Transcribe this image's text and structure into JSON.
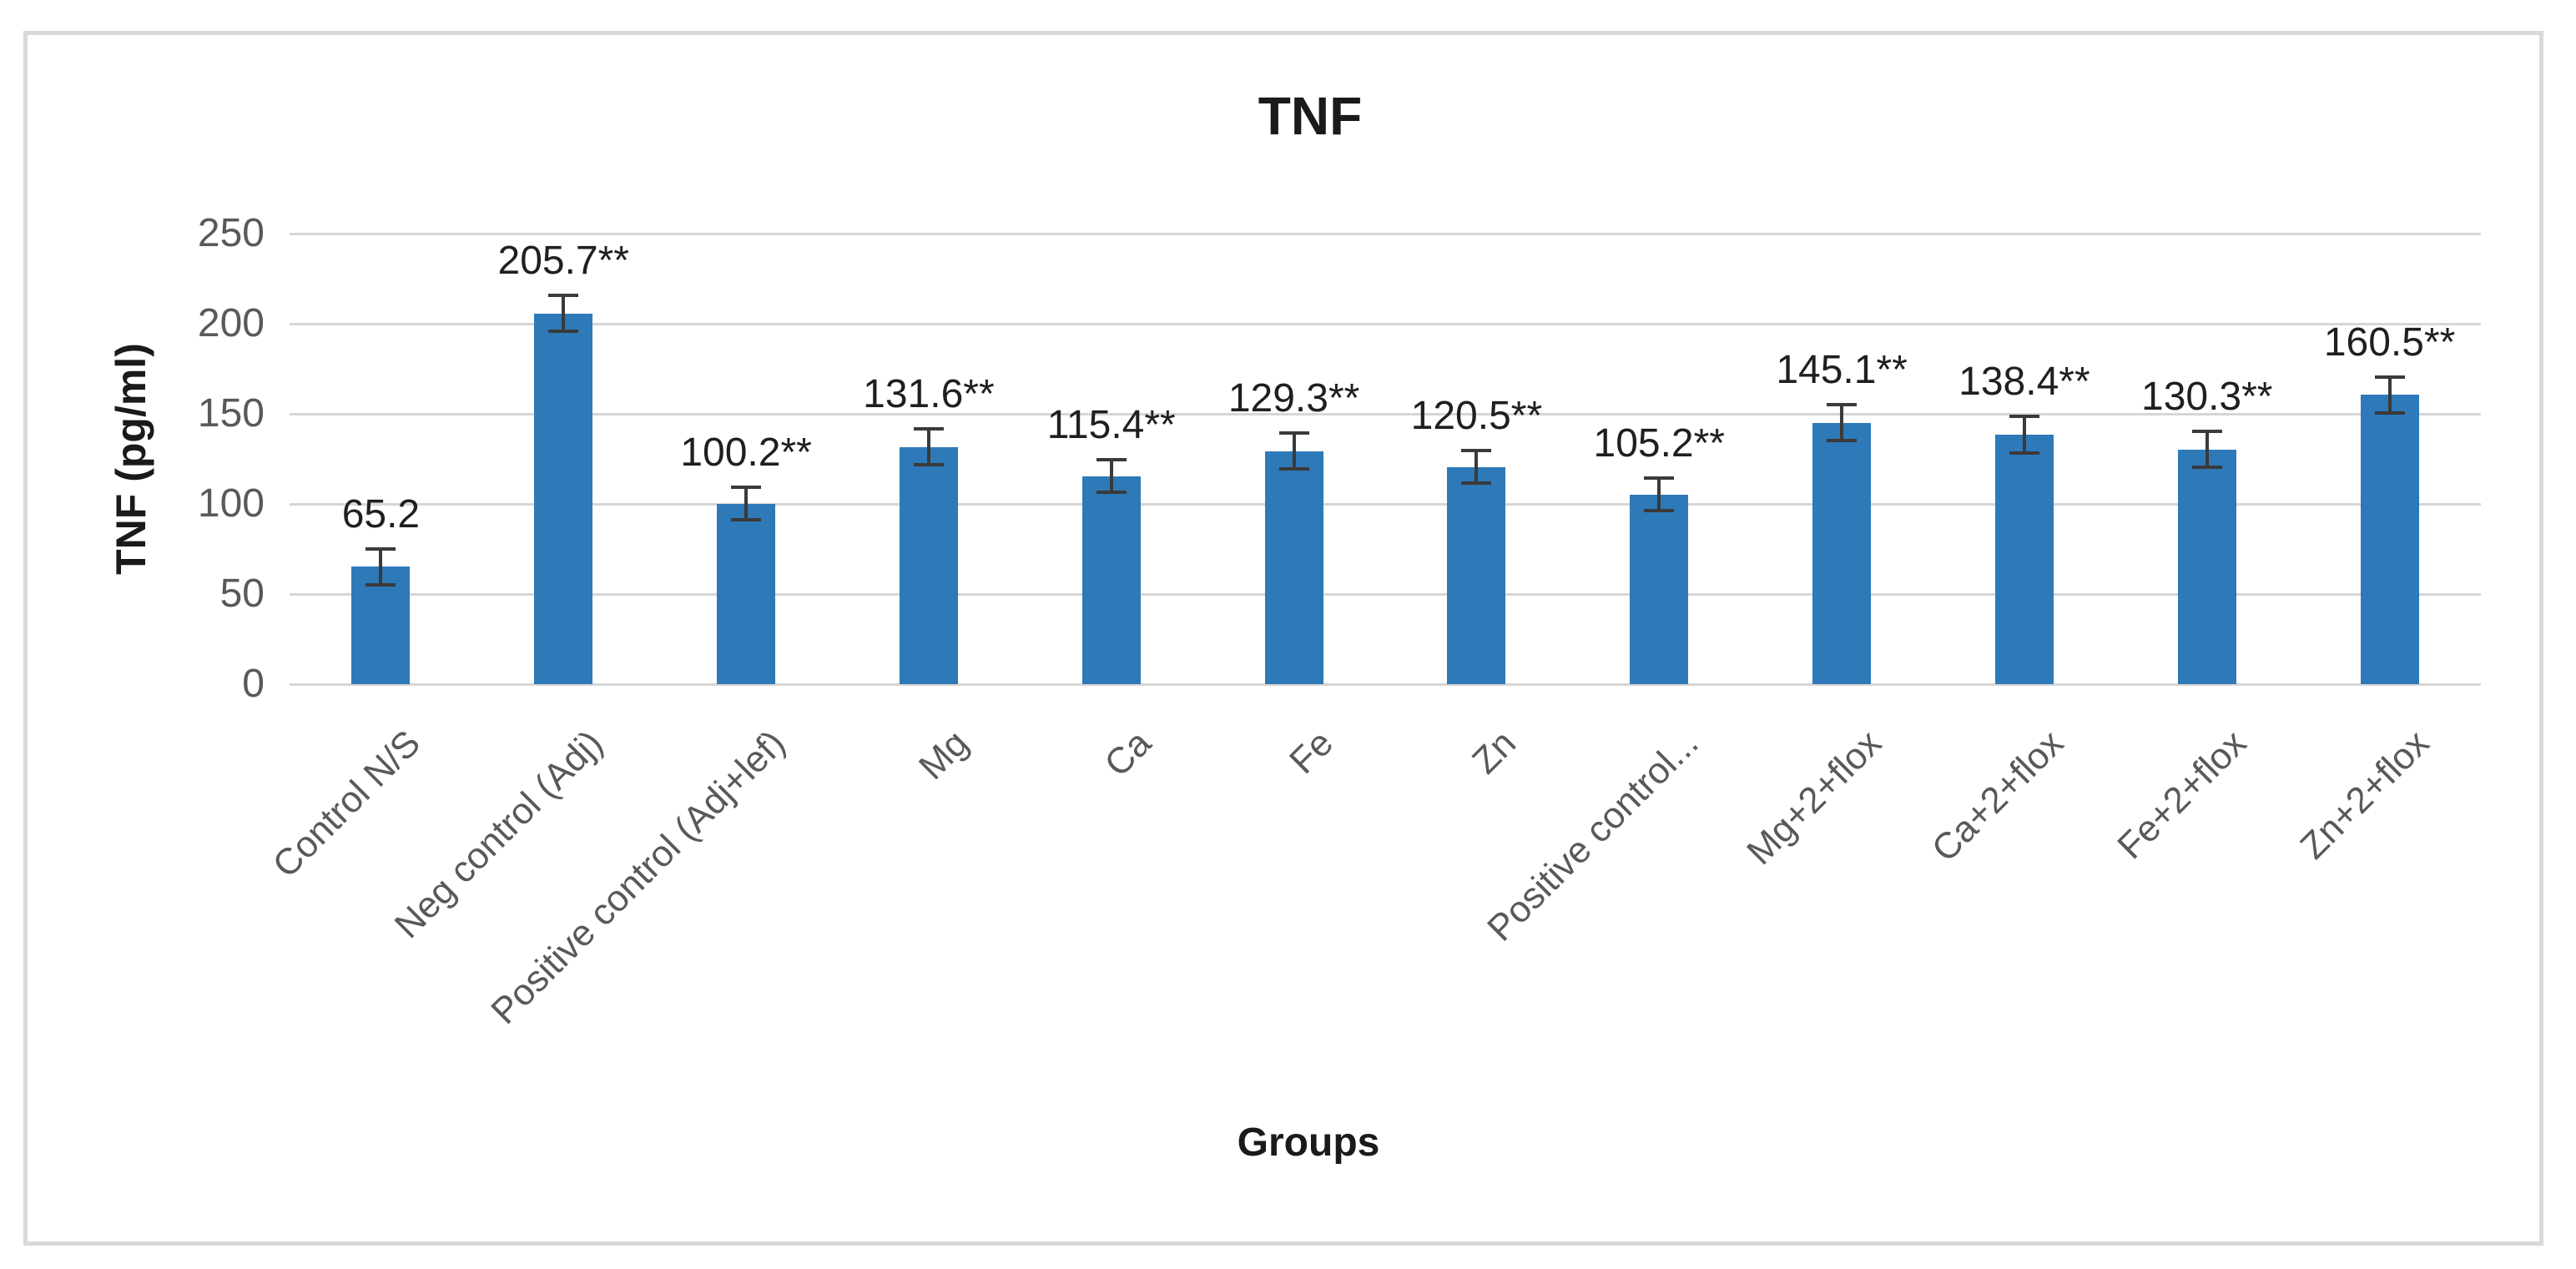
{
  "chart_data": {
    "type": "bar",
    "title": "TNF",
    "xlabel": "Groups",
    "ylabel": "TNF (pg/ml)",
    "ylim": [
      0,
      250
    ],
    "yticks": [
      0,
      50,
      100,
      150,
      200,
      250
    ],
    "grid": true,
    "legend": false,
    "categories": [
      "Control N/S",
      "Neg control (Adj)",
      "Positive control (Adj+lef)",
      "Mg",
      "Ca",
      "Fe",
      "Zn",
      "Positive control...",
      "Mg+2+flox",
      "Ca+2+flox",
      "Fe+2+flox",
      "Zn+2+flox"
    ],
    "series": [
      {
        "name": "TNF",
        "values": [
          65.2,
          205.7,
          100.2,
          131.6,
          115.4,
          129.3,
          120.5,
          105.2,
          145.1,
          138.4,
          130.3,
          160.5
        ],
        "errors": [
          10,
          10,
          9,
          10,
          9,
          10,
          9,
          9,
          10,
          10,
          10,
          10
        ],
        "data_labels": [
          "65.2",
          "205.7**",
          "100.2**",
          "131.6**",
          "115.4**",
          "129.3**",
          "120.5**",
          "105.2**",
          "145.1**",
          "138.4**",
          "130.3**",
          "160.5**"
        ]
      }
    ]
  },
  "colors": {
    "bar_fill": "#2e79b8",
    "gridline": "#d6d6d6",
    "figure_border": "#d9d9d9",
    "tick_label": "#595959",
    "title_text": "#1a1a1a",
    "data_label_text": "#1f1f1f",
    "error_bar": "#3a3a3a",
    "background": "#ffffff"
  }
}
